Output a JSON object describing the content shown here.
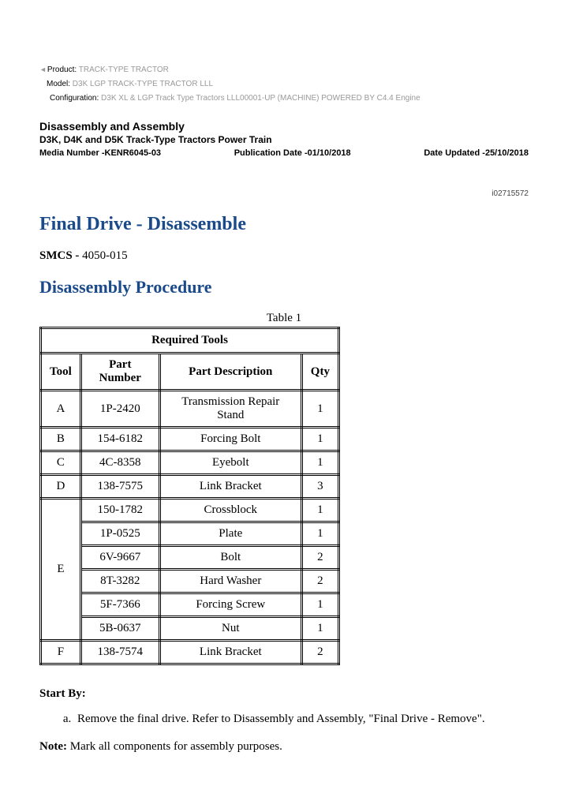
{
  "meta": {
    "product_label": "Product:",
    "product_value": "TRACK-TYPE TRACTOR",
    "model_label": "Model:",
    "model_value": "D3K LGP TRACK-TYPE TRACTOR LLL",
    "config_label": "Configuration:",
    "config_value": "D3K XL & LGP Track Type Tractors LLL00001-UP (MACHINE) POWERED BY C4.4 Engine"
  },
  "header": {
    "section_title": "Disassembly and Assembly",
    "section_sub": "D3K, D4K and D5K Track-Type Tractors Power Train",
    "media_number": "Media Number -KENR6045-03",
    "pub_date": "Publication Date -01/10/2018",
    "date_updated": "Date Updated -25/10/2018",
    "doc_num": "i02715572"
  },
  "titles": {
    "main": "Final Drive - Disassemble",
    "smcs_label": "SMCS -",
    "smcs_value": " 4050-015",
    "procedure": "Disassembly Procedure"
  },
  "table": {
    "caption": "Table 1",
    "title": "Required Tools",
    "columns": [
      "Tool",
      "Part Number",
      "Part Description",
      "Qty"
    ],
    "rows": [
      {
        "tool": "A",
        "pn": "1P-2420",
        "desc": "Transmission Repair Stand",
        "qty": "1",
        "rowspan": 1
      },
      {
        "tool": "B",
        "pn": "154-6182",
        "desc": "Forcing Bolt",
        "qty": "1",
        "rowspan": 1
      },
      {
        "tool": "C",
        "pn": "4C-8358",
        "desc": "Eyebolt",
        "qty": "1",
        "rowspan": 1
      },
      {
        "tool": "D",
        "pn": "138-7575",
        "desc": "Link Bracket",
        "qty": "3",
        "rowspan": 1
      },
      {
        "tool": "E",
        "pn": "150-1782",
        "desc": "Crossblock",
        "qty": "1",
        "rowspan": 6
      },
      {
        "tool": "",
        "pn": "1P-0525",
        "desc": "Plate",
        "qty": "1",
        "rowspan": 0
      },
      {
        "tool": "",
        "pn": "6V-9667",
        "desc": "Bolt",
        "qty": "2",
        "rowspan": 0
      },
      {
        "tool": "",
        "pn": "8T-3282",
        "desc": "Hard Washer",
        "qty": "2",
        "rowspan": 0
      },
      {
        "tool": "",
        "pn": "5F-7366",
        "desc": "Forcing Screw",
        "qty": "1",
        "rowspan": 0
      },
      {
        "tool": "",
        "pn": "5B-0637",
        "desc": "Nut",
        "qty": "1",
        "rowspan": 0
      },
      {
        "tool": "F",
        "pn": "138-7574",
        "desc": "Link Bracket",
        "qty": "2",
        "rowspan": 1
      }
    ]
  },
  "body": {
    "start_by_label": "Start By:",
    "step_a": "Remove the final drive. Refer to Disassembly and Assembly, \"Final Drive - Remove\".",
    "note_label": "Note:",
    "note_text": " Mark all components for assembly purposes."
  },
  "colors": {
    "heading_blue": "#1a4a8a",
    "meta_gray": "#999999",
    "text": "#000000",
    "background": "#ffffff"
  }
}
